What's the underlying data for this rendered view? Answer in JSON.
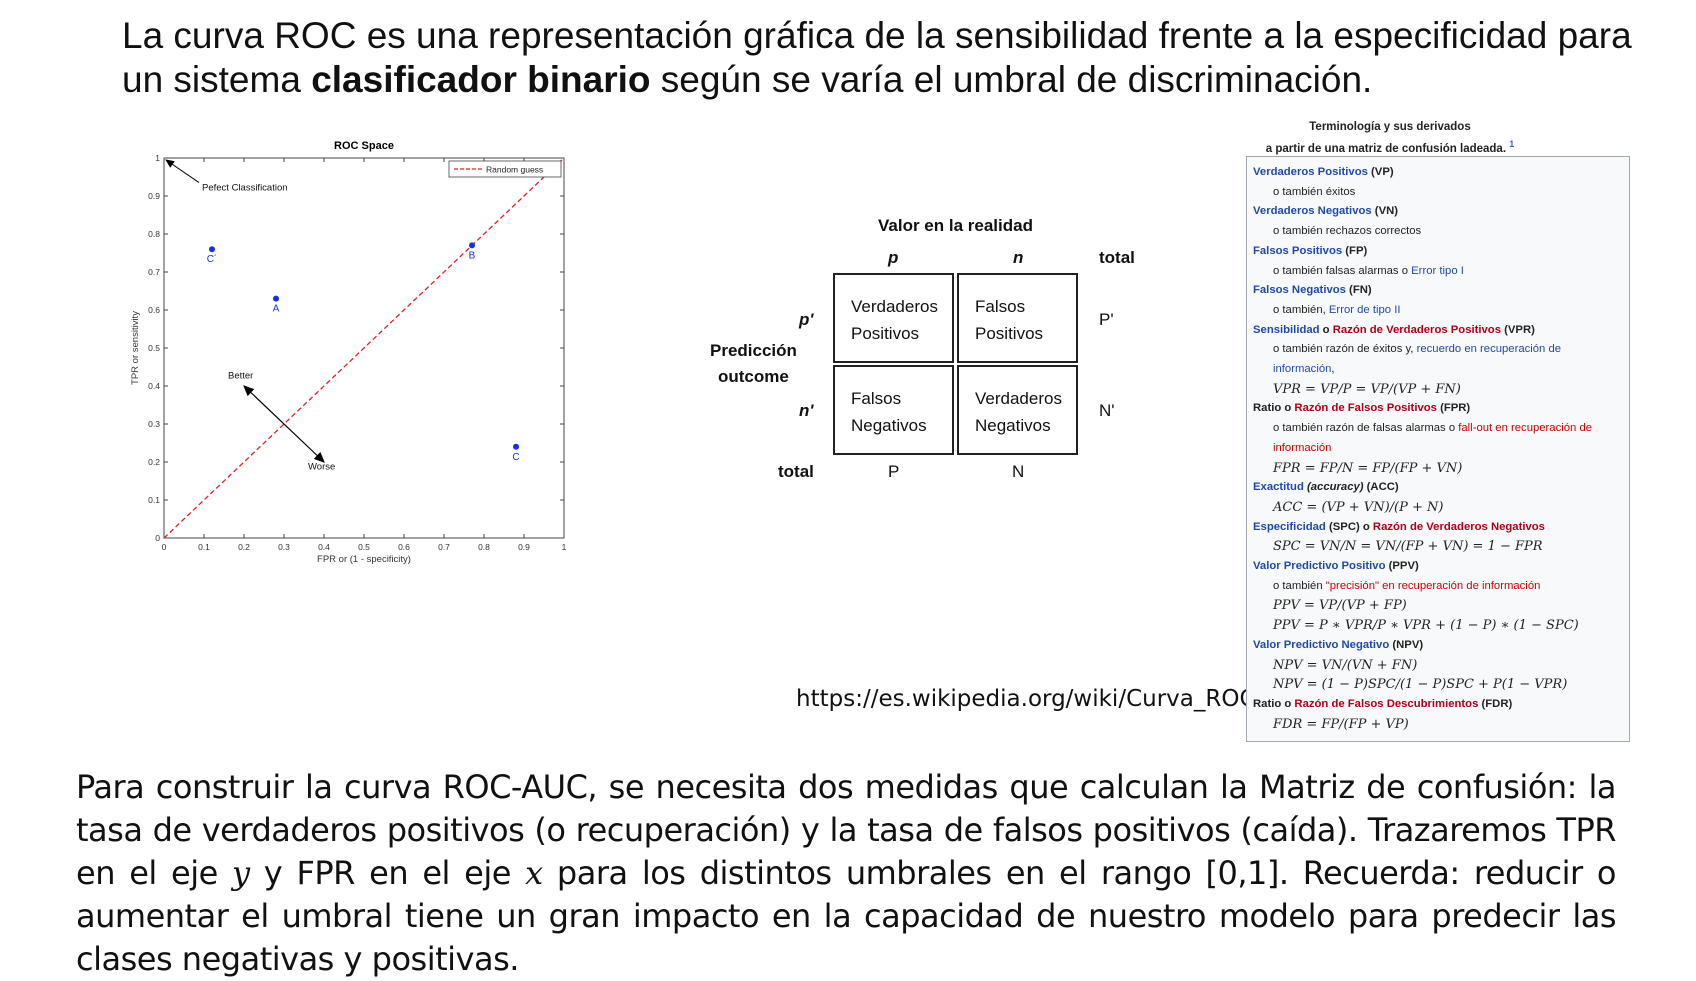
{
  "intro": {
    "part1": "La curva ROC es una representación gráfica de la sensibilidad frente a la especificidad para un sistema ",
    "bold": "clasificador binario",
    "part2": "  según se varía el umbral de discriminación."
  },
  "chart_data": {
    "type": "scatter",
    "title": "ROC Space",
    "xlabel": "FPR or (1 - specificity)",
    "ylabel": "TPR or sensitivity",
    "xlim": [
      0,
      1
    ],
    "ylim": [
      0,
      1
    ],
    "xticks": [
      "0",
      "0.1",
      "0.2",
      "0.3",
      "0.4",
      "0.5",
      "0.6",
      "0.7",
      "0.8",
      "0.9",
      "1"
    ],
    "yticks": [
      "0",
      "0.1",
      "0.2",
      "0.3",
      "0.4",
      "0.5",
      "0.6",
      "0.7",
      "0.8",
      "0.9",
      "1"
    ],
    "legend": {
      "label": "Random guess",
      "placement": "top-right"
    },
    "reference_line": {
      "name": "Random guess",
      "x": [
        0,
        1
      ],
      "y": [
        0,
        1
      ],
      "color": "#dd2222",
      "style": "dashed"
    },
    "points": [
      {
        "label": "A",
        "x": 0.28,
        "y": 0.63
      },
      {
        "label": "B",
        "x": 0.77,
        "y": 0.77
      },
      {
        "label": "C",
        "x": 0.88,
        "y": 0.24
      },
      {
        "label": "C´",
        "x": 0.12,
        "y": 0.76
      }
    ],
    "point_color": "#1a2ee8",
    "annotations": [
      {
        "text": "Pefect Classification",
        "x": 0.08,
        "y": 0.93,
        "arrow_to": [
          0,
          1
        ]
      },
      {
        "text": "Better",
        "x": 0.16,
        "y": 0.42
      },
      {
        "text": "Worse",
        "x": 0.36,
        "y": 0.18
      }
    ],
    "better_worse_arrow": {
      "from": [
        0.2,
        0.4
      ],
      "to": [
        0.4,
        0.2
      ]
    },
    "grid": false
  },
  "confusion_matrix": {
    "top_title": "Valor en la realidad",
    "col_p": "p",
    "col_n": "n",
    "col_total": "total",
    "side_title_1": "Predicción",
    "side_title_2": "outcome",
    "row_p": "p'",
    "row_n": "n'",
    "row_total": "total",
    "tp_1": "Verdaderos",
    "tp_2": "Positivos",
    "fp_1": "Falsos",
    "fp_2": "Positivos",
    "fn_1": "Falsos",
    "fn_2": "Negativos",
    "tn_1": "Verdaderos",
    "tn_2": "Negativos",
    "total_row_p": "P'",
    "total_row_n": "N'",
    "total_col_p": "P",
    "total_col_n": "N"
  },
  "source_url": "https://es.wikipedia.org/wiki/Curva_ROC",
  "terminology": {
    "title_1": "Terminología y sus derivados",
    "title_2": "a partir de una matriz de confusión ladeada.",
    "title_sup": "1",
    "vp_name": "Verdaderos Positivos",
    "vp_abbr": " (VP)",
    "vp_sub": "o también éxitos",
    "vn_name": "Verdaderos Negativos",
    "vn_abbr": " (VN)",
    "vn_sub": "o también rechazos correctos",
    "fp_name": "Falsos Positivos",
    "fp_abbr": " (FP)",
    "fp_sub": "o también falsas alarmas o ",
    "fp_link": "Error tipo I",
    "fn_name": "Falsos Negativos",
    "fn_abbr": " (FN)",
    "fn_sub": "o también, ",
    "fn_link": "Error de tipo II",
    "sens_name": "Sensibilidad",
    "sens_or": " o ",
    "sens_red": "Razón de Verdaderos Positivos",
    "sens_abbr": " (VPR)",
    "sens_sub": "o también razón de éxitos y, ",
    "sens_link": "recuerdo en recuperación de",
    "sens_link2": "información",
    "sens_formula": "VPR = VP/P = VP/(VP + FN)",
    "fpr_prefix": "Ratio o ",
    "fpr_red": "Razón de Falsos Positivos",
    "fpr_abbr": " (FPR)",
    "fpr_sub": "o también razón de falsas alarmas o ",
    "fpr_link": "fall-out en recuperación de",
    "fpr_link2": "información",
    "fpr_formula": "FPR = FP/N = FP/(FP + VN)",
    "acc_name": "Exactitud",
    "acc_mid": " (accuracy)",
    "acc_abbr": " (ACC)",
    "acc_formula": "ACC = (VP + VN)/(P + N)",
    "spc_name": "Especificidad",
    "spc_abbr": " (SPC) o ",
    "spc_red": "Razón de Verdaderos Negativos",
    "spc_formula": "SPC = VN/N = VN/(FP + VN) = 1 − FPR",
    "ppv_name": "Valor Predictivo Positivo",
    "ppv_abbr": " (PPV)",
    "ppv_sub": "o también ",
    "ppv_link": "\"precisión\" en recuperación de información",
    "ppv_formula1": "PPV = VP/(VP + FP)",
    "ppv_formula2": "PPV = P ∗ VPR/P ∗ VPR + (1 − P) ∗ (1 − SPC)",
    "npv_name": "Valor Predictivo Negativo",
    "npv_abbr": " (NPV)",
    "npv_formula1": "NPV = VN/(VN + FN)",
    "npv_formula2": "NPV = (1 − P)SPC/(1 − P)SPC + P(1 − VPR)",
    "fdr_prefix": "Ratio o ",
    "fdr_red": "Razón de Falsos Descubrimientos",
    "fdr_abbr": " (FDR)",
    "fdr_formula": "FDR = FP/(FP + VP)"
  },
  "outro": {
    "part1": "Para construir la curva ROC-AUC, se necesita dos medidas que calculan la Matriz de confusión: la tasa de verdaderos positivos (o recuperación) y la tasa de falsos positivos (caída). Trazaremos TPR en el eje ",
    "y": "y",
    "part2": " y FPR en el eje ",
    "x": "x",
    "part3": " para los distintos umbrales en el rango [0,1]. Recuerda: reducir o aumentar el umbral tiene un gran impacto en la capacidad de nuestro modelo para predecir las clases negativas y positivas."
  }
}
